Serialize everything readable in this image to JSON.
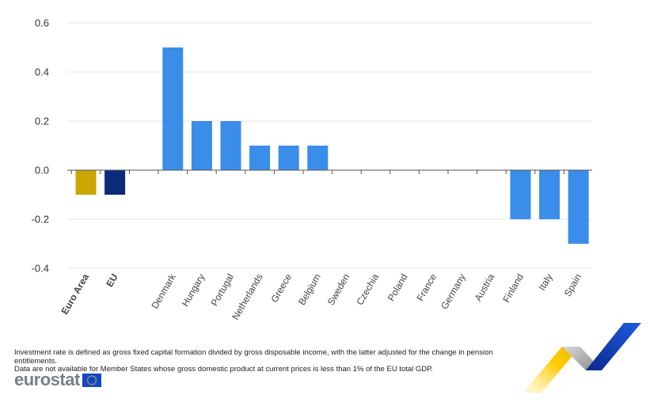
{
  "chart_data": {
    "type": "bar",
    "categories": [
      "Euro Area",
      "EU",
      "Denmark",
      "Hungary",
      "Portugal",
      "Netherlands",
      "Greece",
      "Belgium",
      "Sweden",
      "Czechia",
      "Poland",
      "France",
      "Germany",
      "Austria",
      "Finland",
      "Italy",
      "Spain"
    ],
    "values": [
      -0.1,
      -0.1,
      0.5,
      0.2,
      0.2,
      0.1,
      0.1,
      0.1,
      0.0,
      0.0,
      0.0,
      0.0,
      0.0,
      0.0,
      -0.2,
      -0.2,
      -0.3
    ],
    "bold_categories": [
      "Euro Area",
      "EU"
    ],
    "bar_colors": {
      "Euro Area": "#C9A600",
      "EU": "#0D2A7A",
      "default": "#3A8DE8"
    },
    "ylim": [
      -0.4,
      0.6
    ],
    "yticks": [
      "-0.4",
      "-0.2",
      "0.0",
      "0.2",
      "0.4",
      "0.6"
    ],
    "ytick_values": [
      -0.4,
      -0.2,
      0.0,
      0.2,
      0.4,
      0.6
    ],
    "grid": true,
    "title": "",
    "xlabel": "",
    "ylabel": ""
  },
  "footnote": {
    "line1": "Investment rate is defined as gross fixed capital formation divided by gross disposable income, with the latter adjusted for the change in pension entitlements.",
    "line2": "Data are not available for Member States whose gross domestic product at current prices is less than 1% of the EU total GDP."
  },
  "logo": {
    "text": "eurostat"
  },
  "colors": {
    "grid": "#e6e6e6",
    "axis": "#555555",
    "logo_blue": "#0E47CB",
    "logo_yellow": "#FFCC00"
  }
}
